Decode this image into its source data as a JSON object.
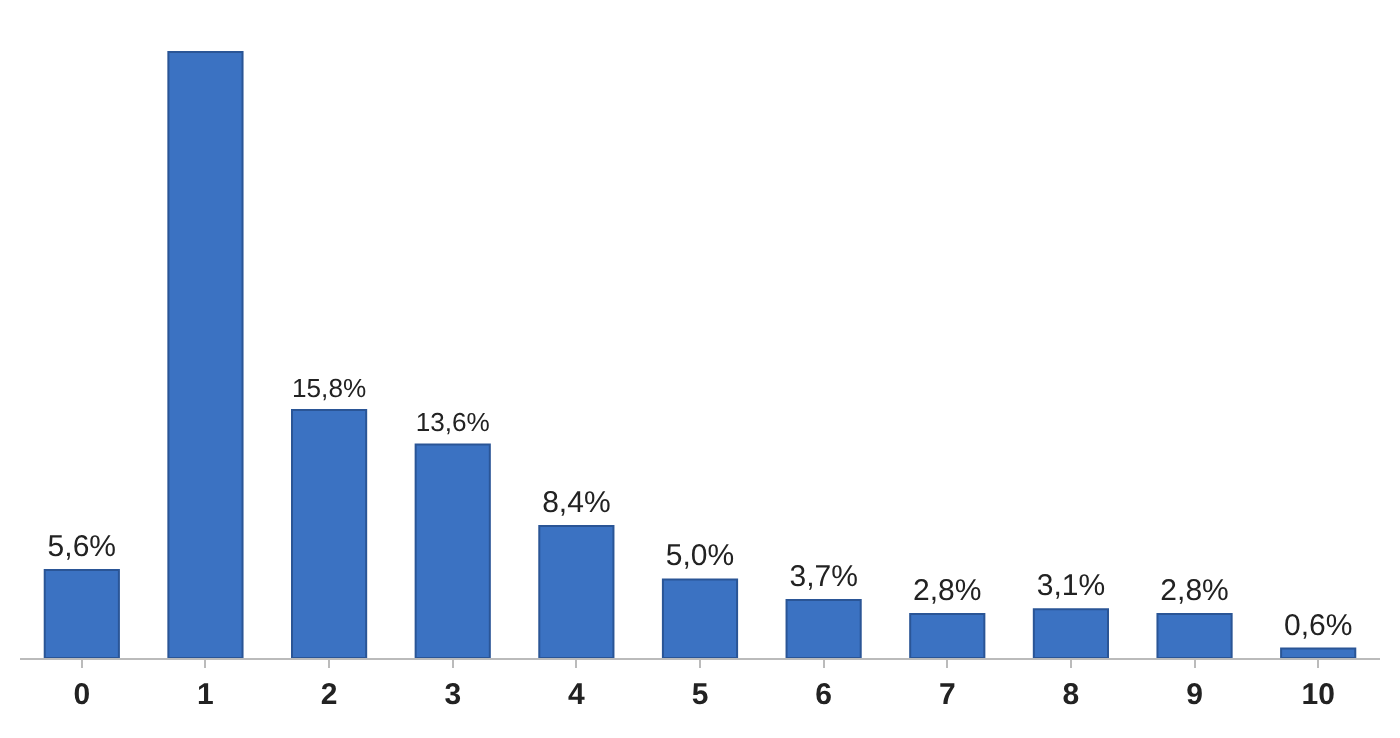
{
  "chart_data": {
    "type": "bar",
    "categories": [
      "0",
      "1",
      "2",
      "3",
      "4",
      "5",
      "6",
      "7",
      "8",
      "9",
      "10"
    ],
    "values": [
      5.6,
      38.6,
      15.8,
      13.6,
      8.4,
      5.0,
      3.7,
      2.8,
      3.1,
      2.8,
      0.6
    ],
    "value_labels": [
      "5,6%",
      null,
      "15,8%",
      "13,6%",
      "8,4%",
      "5,0%",
      "3,7%",
      "2,8%",
      "3,1%",
      "2,8%",
      "0,6%"
    ],
    "color": "#3b72c2",
    "grid": false,
    "legend": false
  }
}
